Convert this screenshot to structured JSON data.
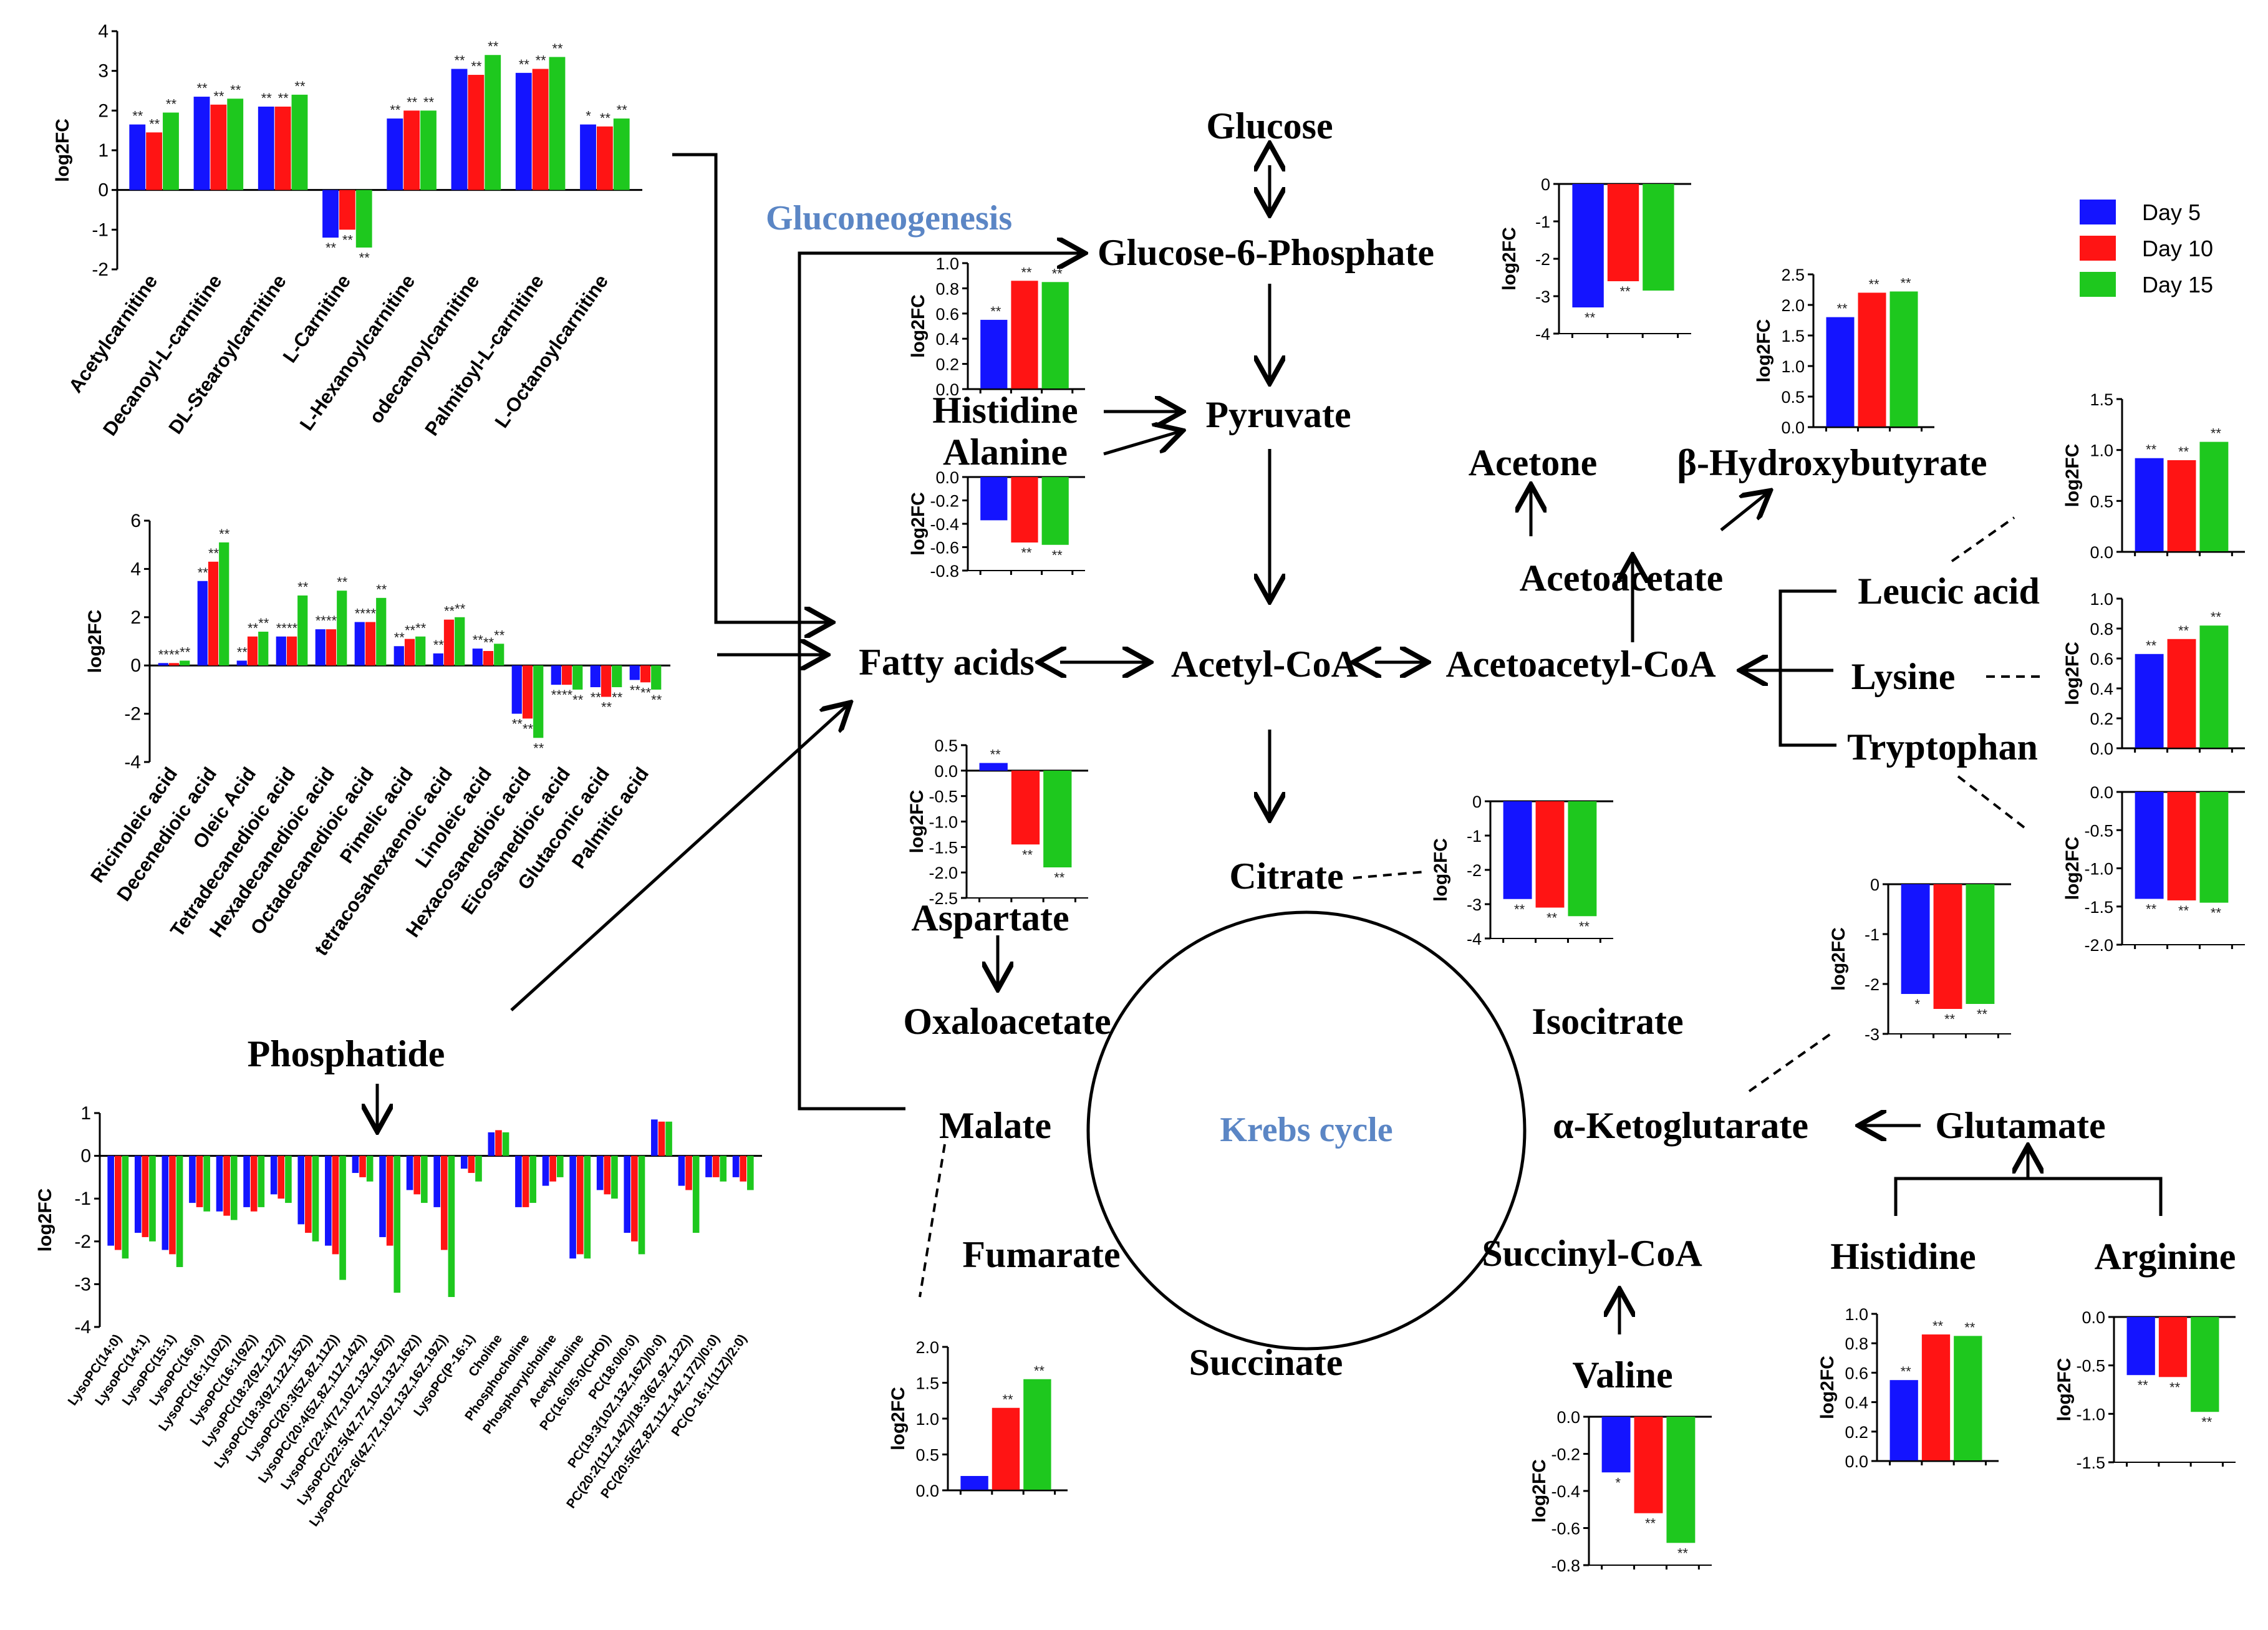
{
  "colors": {
    "day5": "#1414ff",
    "day10": "#ff1414",
    "day15": "#1ec81e"
  },
  "legend": [
    "Day 5",
    "Day 10",
    "Day 15"
  ],
  "axis_label": "log2FC",
  "labels": {
    "glucose": "Glucose",
    "g6p": "Glucose-6-Phosphate",
    "gluconeogenesis": "Gluconeogenesis",
    "histidine_top": "Histidine",
    "alanine": "Alanine",
    "pyruvate": "Pyruvate",
    "acetone": "Acetone",
    "bhb": "β-Hydroxybutyrate",
    "acetoacetate": "Acetoacetate",
    "leucic": "Leucic acid",
    "lysine": "Lysine",
    "tryptophan": "Tryptophan",
    "fatty_acids": "Fatty acids",
    "acetyl_coa": "Acetyl-CoA",
    "acetoacetyl_coa": "Acetoacetyl-CoA",
    "aspartate": "Aspartate",
    "oxaloacetate": "Oxaloacetate",
    "citrate": "Citrate",
    "isocitrate": "Isocitrate",
    "krebs": "Krebs cycle",
    "malate": "Malate",
    "fumarate": "Fumarate",
    "succinate": "Succinate",
    "succinyl_coa": "Succinyl-CoA",
    "valine": "Valine",
    "akg": "α-Ketoglutarate",
    "glutamate": "Glutamate",
    "histidine_bottom": "Histidine",
    "arginine": "Arginine",
    "phosphatide": "Phosphatide"
  },
  "chart_data": [
    {
      "id": "carnitines",
      "type": "bar",
      "ylabel": "log2FC",
      "ylim": [
        -2,
        4
      ],
      "yticks": [
        -2,
        -1,
        0,
        1,
        2,
        3,
        4
      ],
      "categories": [
        "Acetylcarnitine",
        "Decanoyl-L-carnitine",
        "DL-Stearoylcarnitine",
        "L-Carnitine",
        "L-Hexanoylcarnitine",
        "odecanoylcarnitine",
        "Palmitoyl-L-carnitine",
        "L-Octanoylcarnitine"
      ],
      "series": [
        {
          "name": "Day 5",
          "values": [
            1.65,
            2.35,
            2.1,
            -1.2,
            1.8,
            3.05,
            2.95,
            1.65
          ]
        },
        {
          "name": "Day 10",
          "values": [
            1.45,
            2.15,
            2.1,
            -1.0,
            2.0,
            2.9,
            3.05,
            1.6
          ]
        },
        {
          "name": "Day 15",
          "values": [
            1.95,
            2.3,
            2.4,
            -1.45,
            2.0,
            3.4,
            3.35,
            1.8
          ]
        }
      ],
      "stars": [
        [
          "**",
          "**",
          "**"
        ],
        [
          "**",
          "**",
          "**"
        ],
        [
          "**",
          "**",
          "**"
        ],
        [
          "**",
          "**",
          "**"
        ],
        [
          "**",
          "**",
          "**"
        ],
        [
          "**",
          "**",
          "**"
        ],
        [
          "**",
          "**",
          "**"
        ],
        [
          "*",
          "**",
          "**"
        ]
      ]
    },
    {
      "id": "fattyacids",
      "type": "bar",
      "ylabel": "log2FC",
      "ylim": [
        -4,
        6
      ],
      "yticks": [
        -4,
        -2,
        0,
        2,
        4,
        6
      ],
      "categories": [
        "Ricinoleic acid",
        "Decenedioic acid",
        "Oleic Acid",
        "Tetradecanedioic acid",
        "Hexadecanedioic acid",
        "Octadecanedioic acid",
        "Pimelic acid",
        "tetracosahexaenoic acid",
        "Linoleic acid",
        "Hexacosanedioic acid",
        "Eicosanedioic acid",
        "Glutaconic acid",
        "Palmitic acid"
      ],
      "series": [
        {
          "name": "Day 5",
          "values": [
            0.1,
            3.5,
            0.2,
            1.2,
            1.5,
            1.8,
            0.8,
            0.5,
            0.7,
            -2.0,
            -0.8,
            -0.9,
            -0.6
          ]
        },
        {
          "name": "Day 10",
          "values": [
            0.1,
            4.3,
            1.2,
            1.2,
            1.5,
            1.8,
            1.1,
            1.9,
            0.6,
            -2.2,
            -0.8,
            -1.3,
            -0.7
          ]
        },
        {
          "name": "Day 15",
          "values": [
            0.2,
            5.1,
            1.4,
            2.9,
            3.1,
            2.8,
            1.2,
            2.0,
            0.9,
            -3.0,
            -1.0,
            -0.9,
            -1.0
          ]
        }
      ],
      "stars": [
        [
          "**",
          "**",
          "**"
        ],
        [
          "**",
          "**",
          "**"
        ],
        [
          "**",
          "**",
          "**"
        ],
        [
          "**",
          "**",
          "**"
        ],
        [
          "**",
          "**",
          "**"
        ],
        [
          "**",
          "**",
          "**"
        ],
        [
          "**",
          "**",
          "**"
        ],
        [
          "**",
          "**",
          "**"
        ],
        [
          "**",
          "**",
          "**"
        ],
        [
          "**",
          "**",
          "**"
        ],
        [
          "**",
          "**",
          "**"
        ],
        [
          "**",
          "**",
          "**"
        ],
        [
          "**",
          "**",
          "**"
        ]
      ]
    },
    {
      "id": "phosphatide",
      "type": "bar",
      "ylabel": "log2FC",
      "ylim": [
        -4,
        1
      ],
      "yticks": [
        -4,
        -3,
        -2,
        -1,
        0,
        1
      ],
      "categories": [
        "LysoPC(14:0)",
        "LysoPC(14:1)",
        "LysoPC(15:1)",
        "LysoPC(16:0)",
        "LysoPC(16:1(10Z))",
        "LysoPC(16:1(9Z))",
        "LysoPC(18:2(9Z,12Z))",
        "LysoPC(18:3(9Z,12Z,15Z))",
        "LysoPC(20:3(5Z,8Z,11Z))",
        "LysoPC(20:4(5Z,8Z,11Z,14Z))",
        "LysoPC(22:4(7Z,10Z,13Z,16Z))",
        "LysoPC(22:5(4Z,7Z,10Z,13Z,16Z))",
        "LysoPC(22:6(4Z,7Z,10Z,13Z,16Z,19Z))",
        "LysoPC(P-16:1)",
        "Choline",
        "Phosphocholine",
        "Phosphorylcholine",
        "Acetylcholine",
        "PC(16:0/5:0(CHO))",
        "PC(18:0/0:0)",
        "PC(19:3(10Z,13Z,16Z)/0:0)",
        "PC(20:2(11Z,14Z)/18:3(6Z,9Z,12Z))",
        "PC(20:5(5Z,8Z,11Z,14Z,17Z)/0:0)",
        "PC(O-16:1(11Z)/2:0)"
      ],
      "series": [
        {
          "name": "Day 5",
          "values": [
            -2.1,
            -1.8,
            -2.2,
            -1.1,
            -1.3,
            -1.2,
            -0.9,
            -1.6,
            -2.1,
            -0.4,
            -1.9,
            -0.8,
            -1.2,
            -0.3,
            0.55,
            -1.2,
            -0.7,
            -2.4,
            -0.8,
            -1.8,
            0.85,
            -0.7,
            -0.5,
            -0.5
          ]
        },
        {
          "name": "Day 10",
          "values": [
            -2.2,
            -1.9,
            -2.3,
            -1.2,
            -1.4,
            -1.3,
            -1.0,
            -1.8,
            -2.3,
            -0.5,
            -2.1,
            -0.9,
            -2.2,
            -0.4,
            0.6,
            -1.2,
            -0.6,
            -2.3,
            -0.9,
            -2.0,
            0.8,
            -0.8,
            -0.5,
            -0.6
          ]
        },
        {
          "name": "Day 15",
          "values": [
            -2.4,
            -2.0,
            -2.6,
            -1.3,
            -1.5,
            -1.2,
            -1.1,
            -2.0,
            -2.9,
            -0.6,
            -3.2,
            -1.1,
            -3.3,
            -0.6,
            0.55,
            -1.1,
            -0.5,
            -2.4,
            -1.0,
            -2.3,
            0.8,
            -1.8,
            -0.6,
            -0.8
          ]
        }
      ]
    },
    {
      "id": "g6p",
      "type": "bar",
      "ylabel": "log2FC",
      "ylim": [
        -4,
        0
      ],
      "yticks": [
        -4,
        -3,
        -2,
        -1,
        0
      ],
      "series": [
        {
          "name": "Day 5",
          "values": [
            -3.3
          ]
        },
        {
          "name": "Day 10",
          "values": [
            -2.6
          ]
        },
        {
          "name": "Day 15",
          "values": [
            -2.85
          ]
        }
      ],
      "stars": [
        "**",
        "**",
        ""
      ]
    },
    {
      "id": "histidine_top",
      "type": "bar",
      "ylabel": "log2FC",
      "ylim": [
        0,
        1.0
      ],
      "yticks": [
        0.0,
        0.2,
        0.4,
        0.6,
        0.8,
        1.0
      ],
      "series": [
        {
          "name": "Day 5",
          "values": [
            0.55
          ]
        },
        {
          "name": "Day 10",
          "values": [
            0.86
          ]
        },
        {
          "name": "Day 15",
          "values": [
            0.85
          ]
        }
      ],
      "stars": [
        "**",
        "**",
        "**"
      ]
    },
    {
      "id": "alanine",
      "type": "bar",
      "ylabel": "log2FC",
      "ylim": [
        -0.8,
        0.0
      ],
      "yticks": [
        -0.8,
        -0.6,
        -0.4,
        -0.2,
        0.0
      ],
      "series": [
        {
          "name": "Day 5",
          "values": [
            -0.37
          ]
        },
        {
          "name": "Day 10",
          "values": [
            -0.56
          ]
        },
        {
          "name": "Day 15",
          "values": [
            -0.58
          ]
        }
      ],
      "stars": [
        "",
        "**",
        "**"
      ]
    },
    {
      "id": "bhb",
      "type": "bar",
      "ylabel": "log2FC",
      "ylim": [
        0,
        2.5
      ],
      "yticks": [
        0.0,
        0.5,
        1.0,
        1.5,
        2.0,
        2.5
      ],
      "series": [
        {
          "name": "Day 5",
          "values": [
            1.8
          ]
        },
        {
          "name": "Day 10",
          "values": [
            2.2
          ]
        },
        {
          "name": "Day 15",
          "values": [
            2.22
          ]
        }
      ],
      "stars": [
        "**",
        "**",
        "**"
      ]
    },
    {
      "id": "leucic",
      "type": "bar",
      "ylabel": "log2FC",
      "ylim": [
        0,
        1.5
      ],
      "yticks": [
        0.0,
        0.5,
        1.0,
        1.5
      ],
      "series": [
        {
          "name": "Day 5",
          "values": [
            0.92
          ]
        },
        {
          "name": "Day 10",
          "values": [
            0.9
          ]
        },
        {
          "name": "Day 15",
          "values": [
            1.08
          ]
        }
      ],
      "stars": [
        "**",
        "**",
        "**"
      ]
    },
    {
      "id": "lysine",
      "type": "bar",
      "ylabel": "log2FC",
      "ylim": [
        0,
        1.0
      ],
      "yticks": [
        0.0,
        0.2,
        0.4,
        0.6,
        0.8,
        1.0
      ],
      "series": [
        {
          "name": "Day 5",
          "values": [
            0.63
          ]
        },
        {
          "name": "Day 10",
          "values": [
            0.73
          ]
        },
        {
          "name": "Day 15",
          "values": [
            0.82
          ]
        }
      ],
      "stars": [
        "**",
        "**",
        "**"
      ]
    },
    {
      "id": "tryptophan",
      "type": "bar",
      "ylabel": "log2FC",
      "ylim": [
        -2.0,
        0.0
      ],
      "yticks": [
        -2.0,
        -1.5,
        -1.0,
        -0.5,
        0.0
      ],
      "series": [
        {
          "name": "Day 5",
          "values": [
            -1.4
          ]
        },
        {
          "name": "Day 10",
          "values": [
            -1.42
          ]
        },
        {
          "name": "Day 15",
          "values": [
            -1.45
          ]
        }
      ],
      "stars": [
        "**",
        "**",
        "**"
      ]
    },
    {
      "id": "aspartate",
      "type": "bar",
      "ylabel": "log2FC",
      "ylim": [
        -2.5,
        0.5
      ],
      "yticks": [
        -2.5,
        -2.0,
        -1.5,
        -1.0,
        -0.5,
        0.0,
        0.5
      ],
      "series": [
        {
          "name": "Day 5",
          "values": [
            0.15
          ]
        },
        {
          "name": "Day 10",
          "values": [
            -1.45
          ]
        },
        {
          "name": "Day 15",
          "values": [
            -1.9
          ]
        }
      ],
      "stars": [
        "**",
        "**",
        "**"
      ]
    },
    {
      "id": "citrate",
      "type": "bar",
      "ylabel": "log2FC",
      "ylim": [
        -4,
        0
      ],
      "yticks": [
        -4,
        -3,
        -2,
        -1,
        0
      ],
      "series": [
        {
          "name": "Day 5",
          "values": [
            -2.85
          ]
        },
        {
          "name": "Day 10",
          "values": [
            -3.1
          ]
        },
        {
          "name": "Day 15",
          "values": [
            -3.35
          ]
        }
      ],
      "stars": [
        "**",
        "**",
        "**"
      ]
    },
    {
      "id": "akg",
      "type": "bar",
      "ylabel": "log2FC",
      "ylim": [
        -3,
        0
      ],
      "yticks": [
        -3,
        -2,
        -1,
        0
      ],
      "series": [
        {
          "name": "Day 5",
          "values": [
            -2.2
          ]
        },
        {
          "name": "Day 10",
          "values": [
            -2.5
          ]
        },
        {
          "name": "Day 15",
          "values": [
            -2.4
          ]
        }
      ],
      "stars": [
        "*",
        "**",
        "**"
      ]
    },
    {
      "id": "fumarate",
      "type": "bar",
      "ylabel": "log2FC",
      "ylim": [
        0,
        2.0
      ],
      "yticks": [
        0.0,
        0.5,
        1.0,
        1.5,
        2.0
      ],
      "series": [
        {
          "name": "Day 5",
          "values": [
            0.2
          ]
        },
        {
          "name": "Day 10",
          "values": [
            1.15
          ]
        },
        {
          "name": "Day 15",
          "values": [
            1.55
          ]
        }
      ],
      "stars": [
        "",
        "**",
        "**"
      ]
    },
    {
      "id": "valine",
      "type": "bar",
      "ylabel": "log2FC",
      "ylim": [
        -0.8,
        0.0
      ],
      "yticks": [
        -0.8,
        -0.6,
        -0.4,
        -0.2,
        0.0
      ],
      "series": [
        {
          "name": "Day 5",
          "values": [
            -0.3
          ]
        },
        {
          "name": "Day 10",
          "values": [
            -0.52
          ]
        },
        {
          "name": "Day 15",
          "values": [
            -0.68
          ]
        }
      ],
      "stars": [
        "*",
        "**",
        "**"
      ]
    },
    {
      "id": "histidine_bottom",
      "type": "bar",
      "ylabel": "log2FC",
      "ylim": [
        0,
        1.0
      ],
      "yticks": [
        0.0,
        0.2,
        0.4,
        0.6,
        0.8,
        1.0
      ],
      "series": [
        {
          "name": "Day 5",
          "values": [
            0.55
          ]
        },
        {
          "name": "Day 10",
          "values": [
            0.86
          ]
        },
        {
          "name": "Day 15",
          "values": [
            0.85
          ]
        }
      ],
      "stars": [
        "**",
        "**",
        "**"
      ]
    },
    {
      "id": "arginine",
      "type": "bar",
      "ylabel": "log2FC",
      "ylim": [
        -1.5,
        0.0
      ],
      "yticks": [
        -1.5,
        -1.0,
        -0.5,
        0.0
      ],
      "series": [
        {
          "name": "Day 5",
          "values": [
            -0.6
          ]
        },
        {
          "name": "Day 10",
          "values": [
            -0.62
          ]
        },
        {
          "name": "Day 15",
          "values": [
            -0.98
          ]
        }
      ],
      "stars": [
        "**",
        "**",
        "**"
      ]
    }
  ]
}
